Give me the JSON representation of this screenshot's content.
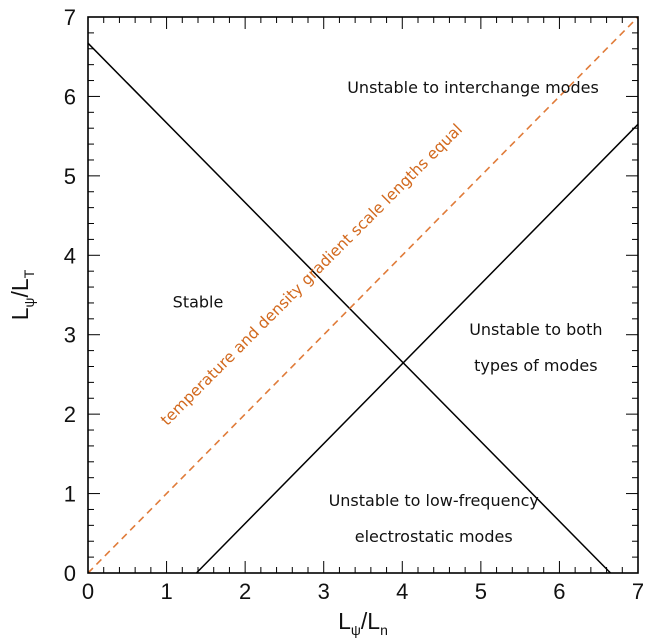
{
  "chart_data": {
    "type": "line",
    "title": "",
    "xlabel": "L_ψ/L_n",
    "ylabel": "L_ψ/L_T",
    "xlabel_parts": {
      "main": "L",
      "sub": "ψ",
      "rest": "/L",
      "sub2": "n"
    },
    "ylabel_parts": {
      "main": "L",
      "sub": "ψ",
      "rest": "/L",
      "sub2": "T"
    },
    "xlim": [
      0,
      7
    ],
    "ylim": [
      0,
      7
    ],
    "x_ticks": [
      0,
      1,
      2,
      3,
      4,
      5,
      6,
      7
    ],
    "y_ticks": [
      0,
      1,
      2,
      3,
      4,
      5,
      6,
      7
    ],
    "grid": false,
    "series": [
      {
        "x": [
          0,
          6.65
        ],
        "y": [
          6.67,
          0
        ],
        "color": "#000000",
        "style": "solid"
      },
      {
        "x": [
          1.38,
          7
        ],
        "y": [
          0,
          5.65
        ],
        "color": "#000000",
        "style": "solid"
      },
      {
        "x": [
          0,
          7
        ],
        "y": [
          0,
          7
        ],
        "color": "#e07b39",
        "style": "dashed"
      }
    ],
    "annotations": [
      {
        "text": "Unstable to interchange modes",
        "x": 4.9,
        "y": 6.1
      },
      {
        "text": "Stable",
        "x": 1.4,
        "y": 3.4
      },
      {
        "text": "Unstable to both",
        "x": 5.7,
        "y": 3.05
      },
      {
        "text": "types of modes",
        "x": 5.7,
        "y": 2.6
      },
      {
        "text": "Unstable to low-frequency",
        "x": 4.4,
        "y": 0.9
      },
      {
        "text": "electrostatic modes",
        "x": 4.4,
        "y": 0.45
      },
      {
        "text": "temperature and density gradient scale lengths equal",
        "x": 2.85,
        "y": 3.75,
        "color": "#d2691e",
        "rotation": 45
      }
    ]
  }
}
